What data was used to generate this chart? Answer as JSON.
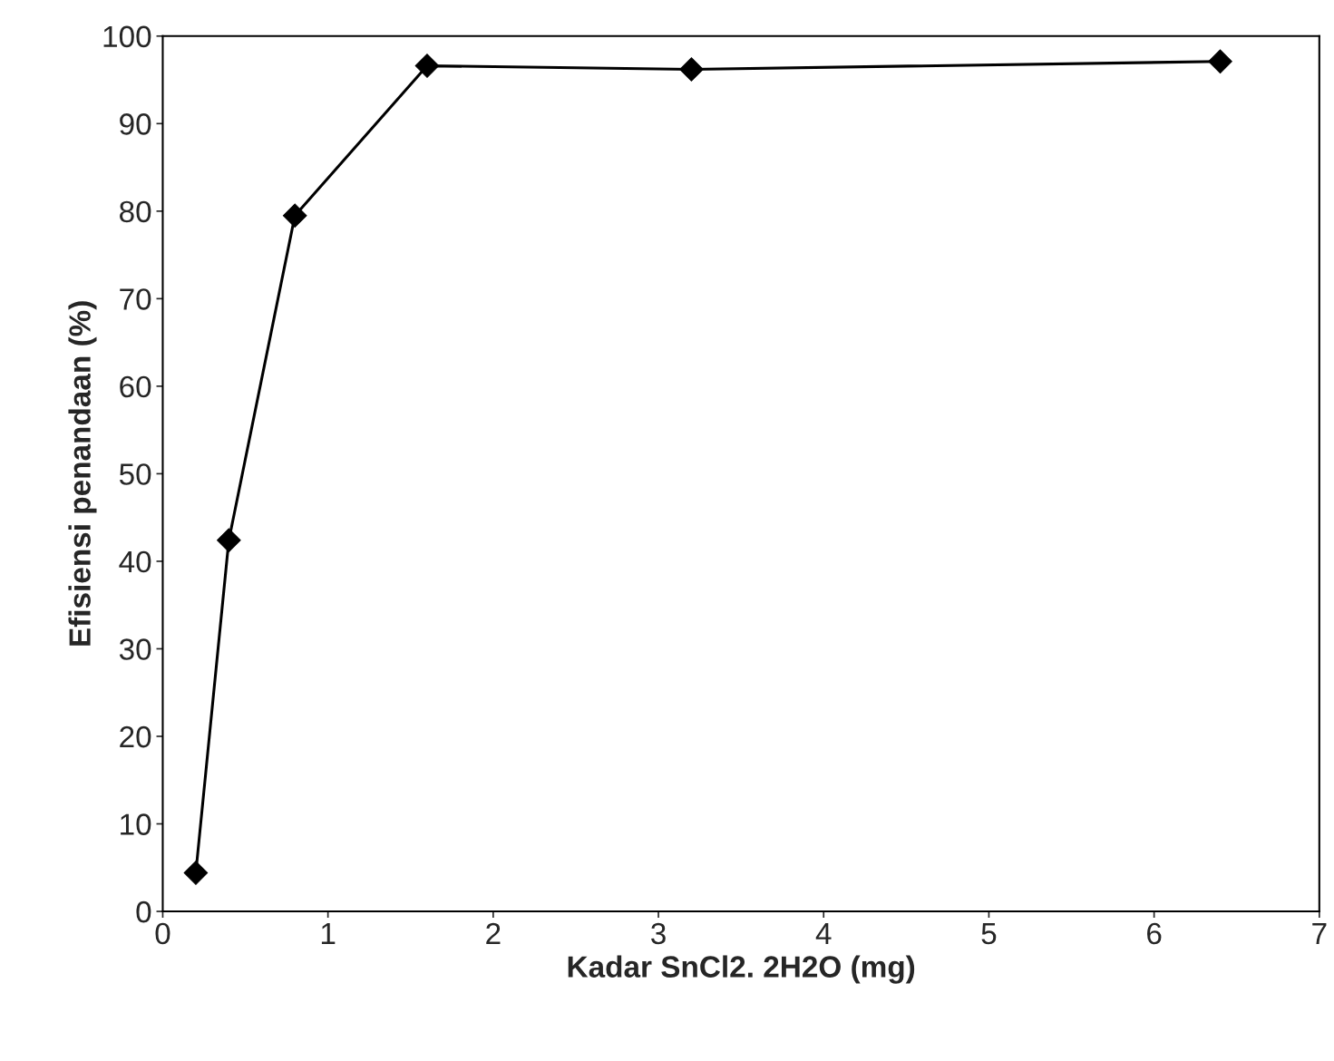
{
  "chart_data": {
    "type": "line",
    "xlabel": "Kadar SnCl2. 2H2O (mg)",
    "ylabel": "Efisiensi penandaan (%)",
    "x": [
      0.2,
      0.4,
      0.8,
      1.6,
      3.2,
      6.4
    ],
    "series": [
      {
        "color": "#000000",
        "values": [
          4.4,
          42.4,
          79.5,
          96.6,
          96.2,
          97.1
        ]
      }
    ],
    "xlim": [
      0,
      7
    ],
    "xticks": [
      0,
      1,
      2,
      3,
      4,
      5,
      6,
      7
    ],
    "ylim": [
      0,
      100
    ],
    "yticks": [
      0,
      10,
      20,
      30,
      40,
      50,
      60,
      70,
      80,
      90,
      100
    ],
    "marker": "diamond",
    "line_style": "solid",
    "grid": false,
    "legend": false
  }
}
